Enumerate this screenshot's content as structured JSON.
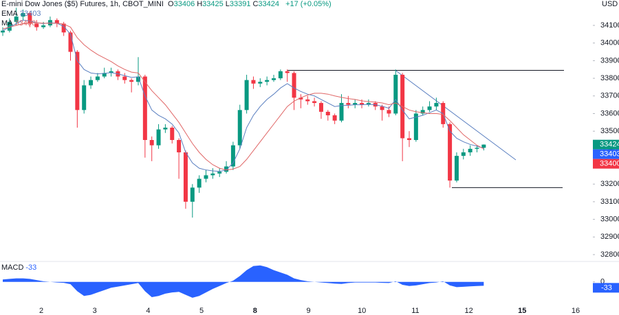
{
  "header": {
    "title": "E-mini Dow Jones ($5) Futures, 1h, CBOT_MINI",
    "ohlc_labels": [
      "O",
      "H",
      "L",
      "C"
    ],
    "change": "+17 (+0.05%)"
  },
  "chart_data": {
    "type": "candlestick",
    "currency": "USD",
    "x_labels": [
      "2",
      "3",
      "4",
      "5",
      "8",
      "9",
      "10",
      "11",
      "12",
      "15",
      "16"
    ],
    "open": [
      34060,
      34070,
      34120,
      34150,
      34170,
      34110,
      34090,
      34100,
      34130,
      34110,
      34060,
      33950,
      33620,
      33760,
      33790,
      33810,
      33830,
      33840,
      33810,
      33790,
      33780,
      33810,
      33450,
      33420,
      33510,
      33520,
      33450,
      33380,
      33100,
      33180,
      33230,
      33250,
      33260,
      33270,
      33300,
      33420,
      33620,
      33790,
      33770,
      33780,
      33790,
      33800,
      33840,
      33830,
      33690,
      33680,
      33670,
      33660,
      33610,
      33590,
      33560,
      33660,
      33650,
      33660,
      33650,
      33660,
      33640,
      33620,
      33600,
      33820,
      33460,
      33450,
      33600,
      33620,
      33640,
      33660,
      33540,
      33220,
      33360,
      33380,
      33400,
      33406
    ],
    "high": [
      34090,
      34140,
      34200,
      34190,
      34180,
      34130,
      34120,
      34150,
      34140,
      34120,
      34070,
      33960,
      33790,
      33810,
      33830,
      33860,
      33860,
      33850,
      33830,
      33800,
      33920,
      33820,
      33470,
      33540,
      33540,
      33530,
      33460,
      33390,
      33200,
      33250,
      33280,
      33290,
      33290,
      33330,
      33440,
      33650,
      33820,
      33810,
      33800,
      33810,
      33820,
      33850,
      33850,
      33840,
      33710,
      33700,
      33690,
      33670,
      33620,
      33600,
      33710,
      33700,
      33680,
      33680,
      33680,
      33670,
      33650,
      33640,
      33850,
      33830,
      33500,
      33620,
      33640,
      33670,
      33690,
      33670,
      33550,
      33380,
      33400,
      33420,
      33420,
      33425
    ],
    "low": [
      34040,
      34060,
      34100,
      34130,
      34090,
      34070,
      34080,
      34090,
      34090,
      34040,
      33900,
      33520,
      33600,
      33740,
      33780,
      33800,
      33810,
      33790,
      33770,
      33720,
      33760,
      33350,
      33330,
      33400,
      33490,
      33430,
      33230,
      33060,
      33010,
      33150,
      33210,
      33230,
      33240,
      33260,
      33280,
      33400,
      33600,
      33740,
      33750,
      33760,
      33780,
      33790,
      33780,
      33620,
      33630,
      33650,
      33640,
      33570,
      33560,
      33540,
      33550,
      33630,
      33630,
      33630,
      33640,
      33620,
      33560,
      33580,
      33590,
      33330,
      33410,
      33440,
      33590,
      33610,
      33620,
      33520,
      33180,
      33210,
      33340,
      33360,
      33380,
      33391
    ],
    "close": [
      34070,
      34120,
      34150,
      34170,
      34110,
      34090,
      34100,
      34130,
      34110,
      34060,
      33950,
      33620,
      33760,
      33790,
      33810,
      33830,
      33840,
      33810,
      33790,
      33780,
      33810,
      33450,
      33420,
      33510,
      33520,
      33450,
      33380,
      33100,
      33180,
      33230,
      33250,
      33260,
      33270,
      33300,
      33420,
      33620,
      33790,
      33770,
      33780,
      33790,
      33800,
      33840,
      33830,
      33690,
      33680,
      33670,
      33660,
      33610,
      33590,
      33560,
      33660,
      33650,
      33660,
      33650,
      33660,
      33640,
      33620,
      33600,
      33820,
      33460,
      33450,
      33600,
      33620,
      33640,
      33660,
      33540,
      33220,
      33360,
      33380,
      33400,
      33406,
      33424
    ],
    "up_color": "#089981",
    "down_color": "#f23645",
    "ylim": [
      32765,
      34244
    ],
    "yticks": [
      32800,
      32900,
      33000,
      33100,
      33200,
      33300,
      33400,
      33500,
      33600,
      33700,
      33800,
      33900,
      34000,
      34100
    ],
    "series": [
      {
        "name": "EMA",
        "color": "#5a7fc0",
        "values": [
          34070,
          34090,
          34110,
          34130,
          34125,
          34115,
          34110,
          34115,
          34112,
          34095,
          34050,
          33900,
          33850,
          33830,
          33825,
          33828,
          33832,
          33825,
          33815,
          33805,
          33808,
          33700,
          33620,
          33590,
          33570,
          33540,
          33490,
          33380,
          33320,
          33290,
          33280,
          33275,
          33272,
          33280,
          33320,
          33400,
          33520,
          33590,
          33640,
          33680,
          33710,
          33745,
          33770,
          33745,
          33725,
          33710,
          33700,
          33680,
          33660,
          33640,
          33645,
          33647,
          33650,
          33650,
          33652,
          33650,
          33642,
          33630,
          33680,
          33620,
          33570,
          33580,
          33590,
          33605,
          33620,
          33600,
          33500,
          33460,
          33440,
          33425,
          33415,
          33403
        ]
      },
      {
        "name": "MA",
        "color": "#e06666",
        "values": [
          34080,
          34090,
          34100,
          34110,
          34115,
          34115,
          34112,
          34112,
          34112,
          34108,
          34090,
          34030,
          33990,
          33960,
          33935,
          33915,
          33895,
          33870,
          33850,
          33835,
          33830,
          33780,
          33730,
          33690,
          33650,
          33600,
          33550,
          33490,
          33430,
          33380,
          33340,
          33310,
          33290,
          33280,
          33285,
          33300,
          33340,
          33390,
          33440,
          33490,
          33540,
          33590,
          33640,
          33670,
          33690,
          33705,
          33715,
          33715,
          33710,
          33700,
          33692,
          33685,
          33680,
          33672,
          33668,
          33665,
          33660,
          33650,
          33660,
          33640,
          33620,
          33610,
          33605,
          33600,
          33600,
          33595,
          33560,
          33520,
          33480,
          33450,
          33420,
          33400
        ]
      }
    ],
    "levels": [
      33845,
      33180
    ],
    "trendline": [
      33845,
      33337
    ],
    "macd": {
      "name": "MACD",
      "color": "#2962ff",
      "ylim": [
        -200,
        150
      ],
      "yticks": [
        0
      ],
      "values": [
        20,
        25,
        30,
        30,
        25,
        15,
        5,
        0,
        -5,
        -8,
        -20,
        -80,
        -120,
        -110,
        -90,
        -70,
        -50,
        -40,
        -30,
        -20,
        -10,
        -80,
        -130,
        -120,
        -100,
        -90,
        -85,
        -110,
        -135,
        -120,
        -90,
        -60,
        -35,
        -10,
        10,
        50,
        100,
        135,
        140,
        125,
        100,
        80,
        60,
        30,
        15,
        5,
        0,
        -5,
        -10,
        -15,
        -18,
        -10,
        -5,
        -5,
        -5,
        -5,
        -8,
        -10,
        5,
        -25,
        -35,
        -30,
        -20,
        -10,
        -5,
        5,
        -30,
        -45,
        -42,
        -38,
        -35,
        -33
      ]
    }
  }
}
